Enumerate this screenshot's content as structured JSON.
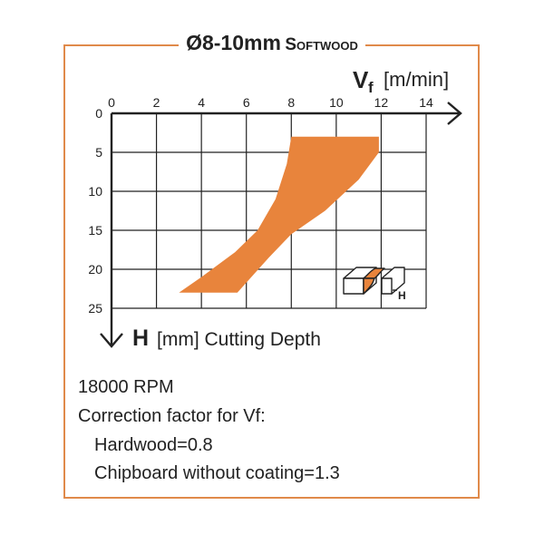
{
  "title": {
    "main": "Ø8-10mm",
    "sub": "Softwood"
  },
  "chart_data": {
    "type": "area",
    "x_axis": {
      "symbol": "V",
      "subscript": "f",
      "unit": "[m/min]",
      "range": [
        0,
        14
      ],
      "ticks": [
        "0",
        "2",
        "4",
        "6",
        "8",
        "10",
        "12",
        "14"
      ]
    },
    "y_axis": {
      "symbol": "H",
      "label": "[mm] Cutting Depth",
      "range": [
        0,
        25
      ],
      "inverted": true,
      "ticks": [
        "0",
        "5",
        "10",
        "15",
        "20",
        "25"
      ]
    },
    "grid": true,
    "region": {
      "color": "#e8843c",
      "boundary": [
        {
          "x": 3.0,
          "y": 23.0
        },
        {
          "x": 4.0,
          "y": 21.0
        },
        {
          "x": 5.5,
          "y": 17.8
        },
        {
          "x": 6.5,
          "y": 15.0
        },
        {
          "x": 7.3,
          "y": 11.0
        },
        {
          "x": 7.8,
          "y": 6.5
        },
        {
          "x": 8.0,
          "y": 3.0
        },
        {
          "x": 11.9,
          "y": 3.0
        },
        {
          "x": 11.9,
          "y": 5.0
        },
        {
          "x": 11.0,
          "y": 8.5
        },
        {
          "x": 9.5,
          "y": 12.5
        },
        {
          "x": 8.0,
          "y": 15.5
        },
        {
          "x": 7.0,
          "y": 18.5
        },
        {
          "x": 5.6,
          "y": 23.0
        }
      ]
    }
  },
  "notes": {
    "rpm": "18000 RPM",
    "correction_title": "Correction factor for Vf:",
    "hardwood": "Hardwood=0.8",
    "chipboard": "Chipboard without coating=1.3"
  },
  "icon_label": "H"
}
